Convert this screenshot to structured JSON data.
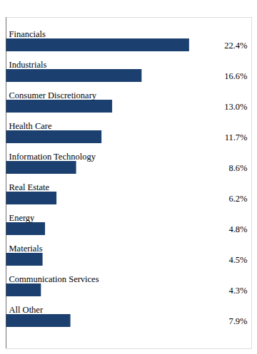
{
  "chart_data": {
    "type": "bar",
    "orientation": "horizontal",
    "categories": [
      "Financials",
      "Industrials",
      "Consumer Discretionary",
      "Health Care",
      "Information Technology",
      "Real Estate",
      "Energy",
      "Materials",
      "Communication Services",
      "All Other"
    ],
    "values": [
      22.4,
      16.6,
      13.0,
      11.7,
      8.6,
      6.2,
      4.8,
      4.5,
      4.3,
      7.9
    ],
    "value_labels": [
      "22.4%",
      "16.6%",
      "13.0%",
      "11.7%",
      "8.6%",
      "6.2%",
      "4.8%",
      "4.5%",
      "4.3%",
      "7.9%"
    ],
    "color": "#1b3f6e",
    "xlim": [
      0,
      30
    ],
    "tick_labels": false,
    "data_labels": true,
    "grid": false
  }
}
